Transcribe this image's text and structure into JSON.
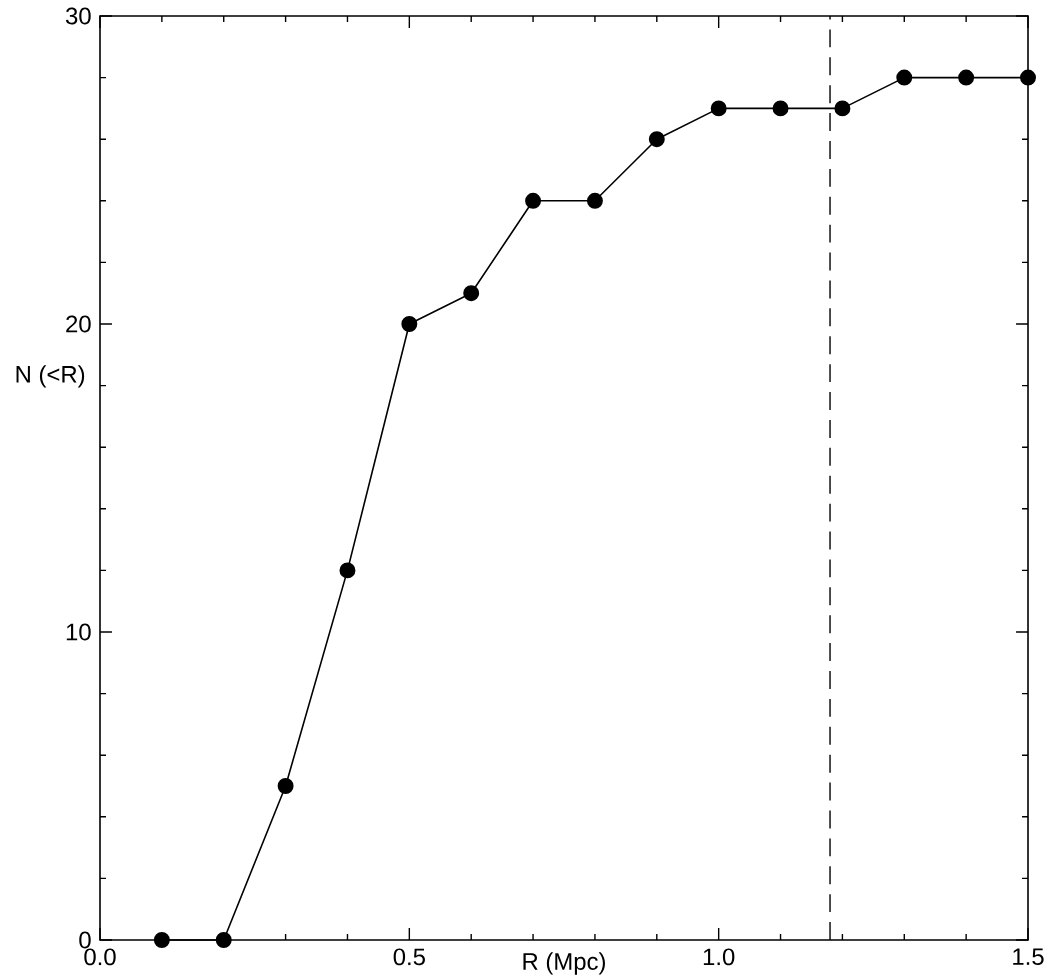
{
  "chart_data": {
    "type": "line",
    "xlabel": "R (Mpc)",
    "ylabel": "N (<R)",
    "x": [
      0.1,
      0.2,
      0.3,
      0.4,
      0.5,
      0.6,
      0.7,
      0.8,
      0.9,
      1.0,
      1.1,
      1.2,
      1.3,
      1.4,
      1.5
    ],
    "values": [
      0,
      0,
      5,
      12,
      20,
      21,
      24,
      24,
      26,
      27,
      27,
      27,
      28,
      28,
      28
    ],
    "color": "#000000",
    "marker": "circle",
    "line_style": "solid",
    "xlim": [
      0,
      1.5
    ],
    "ylim": [
      0,
      30
    ],
    "xticks": [
      {
        "value": 0,
        "label": "0.0"
      },
      {
        "value": 0.5,
        "label": "0.5"
      },
      {
        "value": 1,
        "label": "1.0"
      },
      {
        "value": 1.5,
        "label": "1.5"
      }
    ],
    "yticks": [
      0,
      10,
      20,
      30
    ],
    "ref_lines": [
      {
        "axis": "x",
        "value": 1.18,
        "line_style": "dashed"
      }
    ]
  }
}
